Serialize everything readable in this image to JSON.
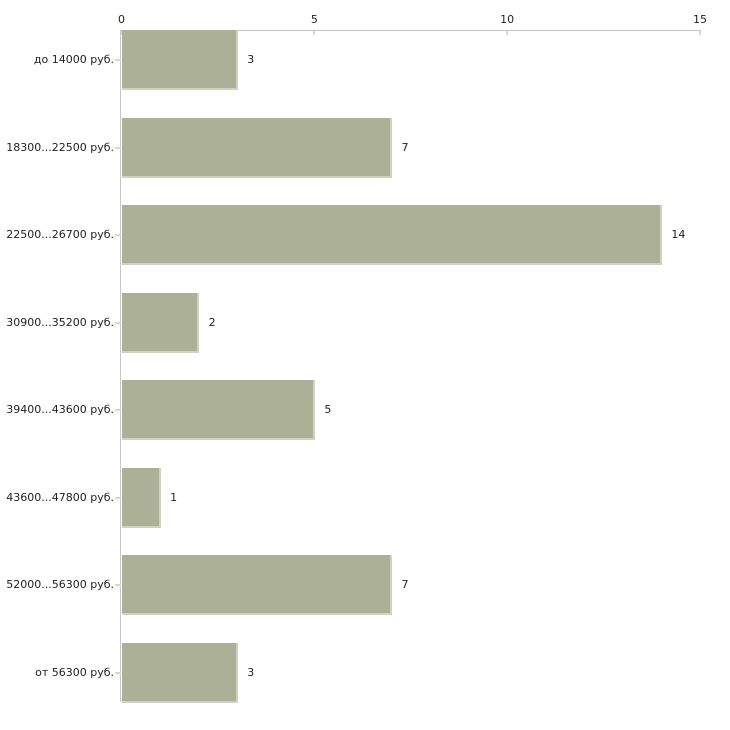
{
  "chart_data": {
    "type": "bar",
    "orientation": "horizontal",
    "title": "",
    "xlabel": "",
    "ylabel": "",
    "categories": [
      "до 14000 руб.",
      "18300...22500 руб.",
      "22500...26700 руб.",
      "30900...35200 руб.",
      "39400...43600 руб.",
      "43600...47800 руб.",
      "52000...56300 руб.",
      "от 56300 руб."
    ],
    "values": [
      3,
      7,
      14,
      2,
      5,
      1,
      7,
      3
    ],
    "value_labels": [
      "3",
      "7",
      "14",
      "2",
      "5",
      "1",
      "7",
      "3"
    ],
    "xlim": [
      0,
      15
    ],
    "xticks": [
      0,
      5,
      10,
      15
    ],
    "xtick_labels": [
      "0",
      "5",
      "10",
      "15"
    ],
    "axis_position": "top",
    "grid": false,
    "legend": false,
    "colors": {
      "bar": "#abb097",
      "bar_edge": "#ced2bf",
      "axis_line": "#c7c7c7",
      "tick": "#d9dbbe",
      "text": "#1f1f1f",
      "background": "#ffffff"
    }
  }
}
